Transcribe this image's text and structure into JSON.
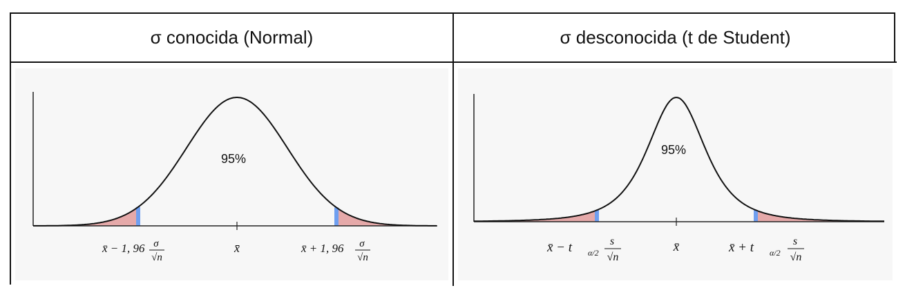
{
  "table": {
    "headers": [
      "σ conocida (Normal)",
      "σ desconocida (t de Student)"
    ]
  },
  "left_panel": {
    "percent_label": "95%",
    "center_label": "x̄",
    "left_bound": {
      "prefix": "x̄ − 1, 96",
      "numerator": "σ",
      "denominator": "√n"
    },
    "right_bound": {
      "prefix": "x̄ + 1, 96",
      "numerator": "σ",
      "denominator": "√n"
    }
  },
  "right_panel": {
    "percent_label": "95%",
    "center_label": "x̄",
    "left_bound": {
      "prefix": "x̄ − t",
      "subscript": "α/2",
      "numerator": "s",
      "denominator": "√n"
    },
    "right_bound": {
      "prefix": "x̄ + t",
      "subscript": "α/2",
      "numerator": "s",
      "denominator": "√n"
    }
  },
  "colors": {
    "tail_fill": "#e5a9a9",
    "boundary_line": "#6f9ff0",
    "curve": "#111111"
  }
}
